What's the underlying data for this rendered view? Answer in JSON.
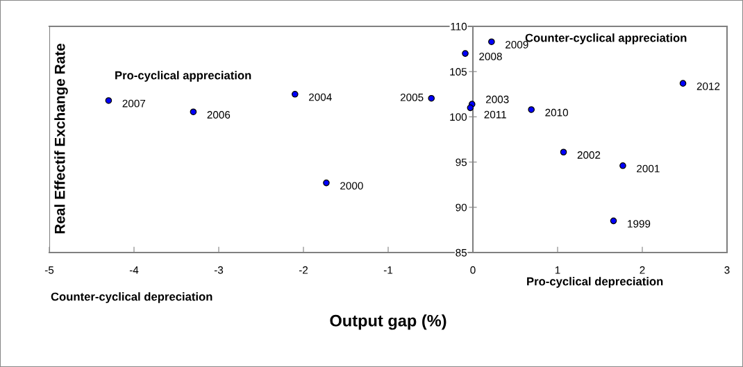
{
  "chart_data": {
    "type": "scatter",
    "xlabel": "Output gap (%)",
    "ylabel": "Real Effectif Exchange Rate",
    "series": [
      {
        "color": "#0000ff",
        "x": [
          1.66,
          1.77,
          1.07,
          -1.73,
          -0.01,
          -2.1,
          -0.49,
          -3.3,
          -4.3,
          -0.09,
          0.22,
          0.69,
          -0.03,
          2.48
        ],
        "values": [
          88.5,
          94.6,
          96.1,
          92.7,
          101.4,
          102.5,
          102.05,
          100.55,
          101.8,
          107.0,
          108.3,
          100.8,
          101.0,
          103.7
        ]
      }
    ],
    "marker": "circle",
    "grid": false,
    "xlim": [
      -5,
      3
    ],
    "xticks": [
      -5,
      -4,
      -3,
      -2,
      -1,
      0,
      1,
      2,
      3
    ],
    "ylim": [
      85,
      110
    ],
    "yticks": [
      85,
      90,
      95,
      100,
      105,
      110
    ],
    "annotations": [
      {
        "text": "1999",
        "x": 1.66,
        "y": 88.5
      },
      {
        "text": "2001",
        "x": 1.77,
        "y": 94.6
      },
      {
        "text": "2002",
        "x": 1.07,
        "y": 96.1
      },
      {
        "text": "2000",
        "x": -1.73,
        "y": 92.7
      },
      {
        "text": "2003",
        "x": -0.01,
        "y": 101.4
      },
      {
        "text": "2004",
        "x": -2.1,
        "y": 102.5
      },
      {
        "text": "2005",
        "x": -0.49,
        "y": 102.05
      },
      {
        "text": "2006",
        "x": -3.3,
        "y": 100.55
      },
      {
        "text": "2007",
        "x": -4.3,
        "y": 101.8
      },
      {
        "text": "2008",
        "x": -0.09,
        "y": 107.0
      },
      {
        "text": "2009",
        "x": 0.22,
        "y": 108.3
      },
      {
        "text": "2010",
        "x": 0.69,
        "y": 100.8
      },
      {
        "text": "2011",
        "x": -0.03,
        "y": 101.0
      },
      {
        "text": "2012",
        "x": 2.48,
        "y": 103.7
      },
      "Pro-cyclical appreciation",
      "Counter-cyclical appreciation",
      "Pro-cyclical depreciation",
      "Counter-cyclical depreciation"
    ]
  }
}
